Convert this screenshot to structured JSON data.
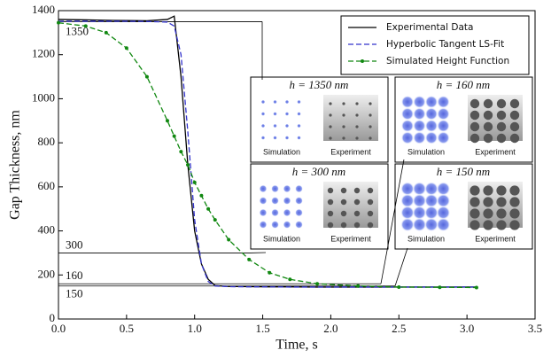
{
  "chart_data": {
    "type": "line",
    "xlabel": "Time, s",
    "ylabel": "Gap Thickness, nm",
    "xlim": [
      0,
      3.5
    ],
    "ylim": [
      0,
      1400
    ],
    "xticks": [
      {
        "value": 0,
        "label": "0.0"
      },
      0.5,
      {
        "value": 1,
        "label": "1.0"
      },
      1.5,
      {
        "value": 2,
        "label": "2.0"
      },
      2.5,
      {
        "value": 3,
        "label": "3.0"
      },
      3.5
    ],
    "yticks": [
      0,
      200,
      400,
      600,
      800,
      1000,
      1200,
      1400
    ],
    "x": [
      0,
      0.2,
      0.35,
      0.5,
      0.65,
      0.8,
      0.85,
      0.9,
      0.95,
      1.0,
      1.05,
      1.1,
      1.15,
      1.25,
      1.4,
      1.55,
      1.7,
      1.9,
      2.2,
      2.5,
      2.8,
      3.07
    ],
    "series": [
      {
        "name": "Experimental Data",
        "color": "#000000",
        "style": "solid",
        "values": [
          1360,
          1358,
          1356,
          1355,
          1354,
          1360,
          1375,
          1100,
          700,
          400,
          250,
          180,
          152,
          148,
          147,
          146,
          146,
          145,
          145,
          145,
          145,
          145
        ]
      },
      {
        "name": "Hyperbolic Tangent LS-Fit",
        "color": "#3333cc",
        "style": "dashed",
        "values": [
          1352,
          1352,
          1352,
          1352,
          1351,
          1348,
          1330,
          1200,
          850,
          450,
          250,
          170,
          150,
          147,
          146,
          146,
          145,
          145,
          145,
          145,
          145,
          145
        ]
      },
      {
        "name": "Simulated Height Function",
        "color": "#118811",
        "style": "dashed-dots",
        "values": [
          1345,
          1330,
          1300,
          1230,
          1100,
          900,
          830,
          760,
          700,
          620,
          560,
          500,
          450,
          360,
          270,
          210,
          180,
          160,
          150,
          145,
          144,
          143
        ]
      }
    ],
    "levels": [
      1350,
      300,
      160,
      150
    ],
    "insets": [
      {
        "title": "h = 1350 nm",
        "labels": [
          "Simulation",
          "Experiment"
        ]
      },
      {
        "title": "h = 160 nm",
        "labels": [
          "Simulation",
          "Experiment"
        ]
      },
      {
        "title": "h = 300 nm",
        "labels": [
          "Simulation",
          "Experiment"
        ]
      },
      {
        "title": "h = 150 nm",
        "labels": [
          "Simulation",
          "Experiment"
        ]
      }
    ]
  }
}
